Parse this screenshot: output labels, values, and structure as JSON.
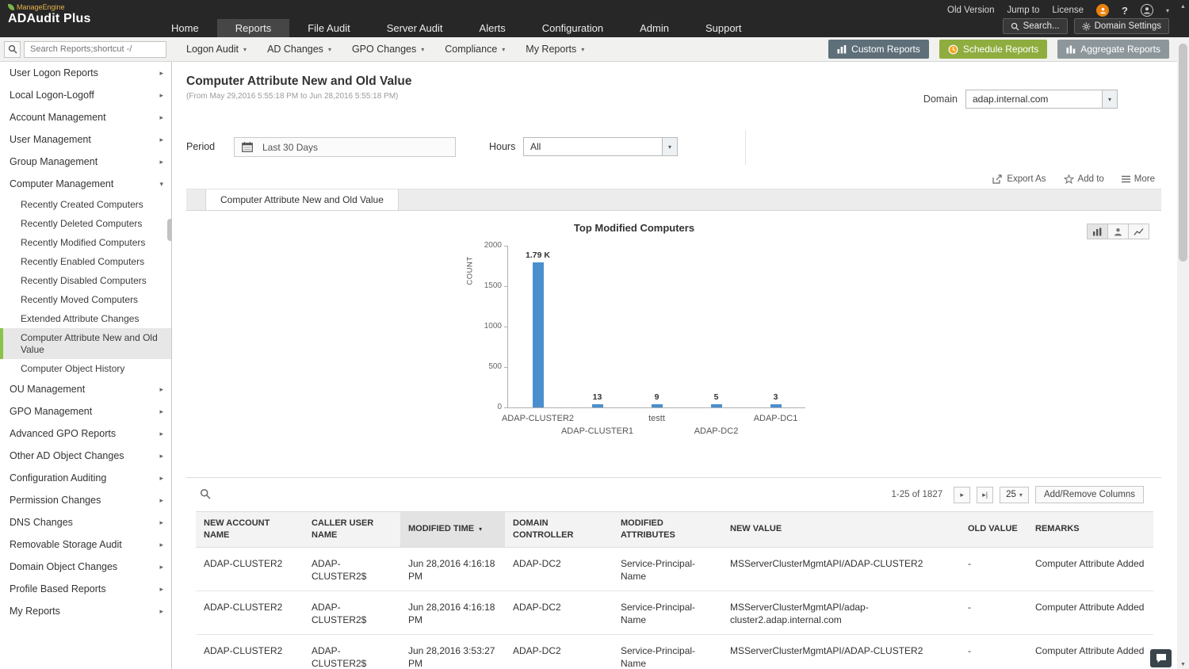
{
  "icons": {
    "caret_down": "▾",
    "sort_desc": "▾",
    "next_page": "▸",
    "last_page": "▸|",
    "scroll_up": "▲",
    "scroll_down": "▼"
  },
  "topbar": {
    "logo": {
      "brand": "ManageEngine",
      "product": "ADAudit Plus"
    },
    "utility_links": [
      "Old Version",
      "Jump to",
      "License"
    ],
    "help_glyph": "?",
    "nav_items": [
      {
        "label": "Home",
        "active": false
      },
      {
        "label": "Reports",
        "active": true
      },
      {
        "label": "File Audit",
        "active": false
      },
      {
        "label": "Server Audit",
        "active": false
      },
      {
        "label": "Alerts",
        "active": false
      },
      {
        "label": "Configuration",
        "active": false
      },
      {
        "label": "Admin",
        "active": false
      },
      {
        "label": "Support",
        "active": false
      }
    ],
    "search_button": "Search...",
    "domain_settings_button": "Domain Settings"
  },
  "toolbar": {
    "search_placeholder": "Search Reports;shortcut -/",
    "menus": [
      {
        "label": "Logon Audit"
      },
      {
        "label": "AD Changes"
      },
      {
        "label": "GPO Changes"
      },
      {
        "label": "Compliance"
      },
      {
        "label": "My Reports"
      }
    ],
    "custom_reports": "Custom Reports",
    "schedule_reports": "Schedule Reports",
    "aggregate_reports": "Aggregate Reports"
  },
  "sidebar": {
    "items_top": [
      {
        "label": "User Logon Reports",
        "arrow": "▸",
        "expanded": false
      },
      {
        "label": "Local Logon-Logoff",
        "arrow": "▸",
        "expanded": false
      },
      {
        "label": "Account Management",
        "arrow": "▸",
        "expanded": false
      },
      {
        "label": "User Management",
        "arrow": "▸",
        "expanded": false
      },
      {
        "label": "Group Management",
        "arrow": "▸",
        "expanded": false
      },
      {
        "label": "Computer Management",
        "arrow": "▾",
        "expanded": true
      }
    ],
    "computer_children": [
      {
        "label": "Recently Created Computers",
        "selected": false
      },
      {
        "label": "Recently Deleted Computers",
        "selected": false
      },
      {
        "label": "Recently Modified Computers",
        "selected": false
      },
      {
        "label": "Recently Enabled Computers",
        "selected": false
      },
      {
        "label": "Recently Disabled Computers",
        "selected": false
      },
      {
        "label": "Recently Moved Computers",
        "selected": false
      },
      {
        "label": "Extended Attribute Changes",
        "selected": false
      },
      {
        "label": "Computer Attribute New and Old Value",
        "selected": true
      },
      {
        "label": "Computer Object History",
        "selected": false
      }
    ],
    "items_bottom": [
      {
        "label": "OU Management",
        "arrow": "▸",
        "expanded": false
      },
      {
        "label": "GPO Management",
        "arrow": "▸",
        "expanded": false
      },
      {
        "label": "Advanced GPO Reports",
        "arrow": "▸",
        "expanded": false
      },
      {
        "label": "Other AD Object Changes",
        "arrow": "▸",
        "expanded": false
      },
      {
        "label": "Configuration Auditing",
        "arrow": "▸",
        "expanded": false
      },
      {
        "label": "Permission Changes",
        "arrow": "▸",
        "expanded": false
      },
      {
        "label": "DNS Changes",
        "arrow": "▸",
        "expanded": false
      },
      {
        "label": "Removable Storage Audit",
        "arrow": "▸",
        "expanded": false
      },
      {
        "label": "Domain Object Changes",
        "arrow": "▸",
        "expanded": false
      },
      {
        "label": "Profile Based Reports",
        "arrow": "▸",
        "expanded": false
      },
      {
        "label": "My Reports",
        "arrow": "▸",
        "expanded": false
      }
    ]
  },
  "report": {
    "title": "Computer Attribute New and Old Value",
    "date_range": "(From May 29,2016 5:55:18 PM to Jun 28,2016 5:55:18 PM)",
    "domain_label": "Domain",
    "domain_value": "adap.internal.com",
    "period_label": "Period",
    "period_value": "Last 30 Days",
    "hours_label": "Hours",
    "hours_value": "All",
    "export_as": "Export As",
    "add_to": "Add to",
    "more": "More",
    "tab_label": "Computer Attribute New and Old Value"
  },
  "chart_data": {
    "type": "bar",
    "title": "Top Modified Computers",
    "xlabel": "",
    "ylabel": "COUNT",
    "categories": [
      "ADAP-CLUSTER2",
      "ADAP-CLUSTER1",
      "testt",
      "ADAP-DC2",
      "ADAP-DC1"
    ],
    "values": [
      1790,
      13,
      9,
      5,
      3
    ],
    "value_labels": [
      "1.79 K",
      "13",
      "9",
      "5",
      "3"
    ],
    "ylim": [
      0,
      2000
    ],
    "yticks": [
      0,
      500,
      1000,
      1500,
      2000
    ],
    "bar_color": "#4a8fcd",
    "grid": false,
    "legend": "none"
  },
  "table": {
    "pagination": "1-25 of 1827",
    "page_size": "25",
    "add_remove_columns": "Add/Remove Columns",
    "headers": [
      "NEW ACCOUNT NAME",
      "CALLER USER NAME",
      "MODIFIED TIME",
      "DOMAIN CONTROLLER",
      "MODIFIED ATTRIBUTES",
      "NEW VALUE",
      "OLD VALUE",
      "REMARKS"
    ],
    "sorted_column": "MODIFIED TIME",
    "rows": [
      {
        "new_account_name": "ADAP-CLUSTER2",
        "caller_user_name": "ADAP-CLUSTER2$",
        "modified_time": "Jun 28,2016 4:16:18 PM",
        "domain_controller": "ADAP-DC2",
        "modified_attributes": "Service-Principal-Name",
        "new_value": "MSServerClusterMgmtAPI/ADAP-CLUSTER2",
        "old_value": "-",
        "remarks": "Computer Attribute Added"
      },
      {
        "new_account_name": "ADAP-CLUSTER2",
        "caller_user_name": "ADAP-CLUSTER2$",
        "modified_time": "Jun 28,2016 4:16:18 PM",
        "domain_controller": "ADAP-DC2",
        "modified_attributes": "Service-Principal-Name",
        "new_value": "MSServerClusterMgmtAPI/adap-cluster2.adap.internal.com",
        "old_value": "-",
        "remarks": "Computer Attribute Added"
      },
      {
        "new_account_name": "ADAP-CLUSTER2",
        "caller_user_name": "ADAP-CLUSTER2$",
        "modified_time": "Jun 28,2016 3:53:27 PM",
        "domain_controller": "ADAP-DC2",
        "modified_attributes": "Service-Principal-Name",
        "new_value": "MSServerClusterMgmtAPI/ADAP-CLUSTER2",
        "old_value": "-",
        "remarks": "Computer Attribute Added"
      }
    ]
  }
}
